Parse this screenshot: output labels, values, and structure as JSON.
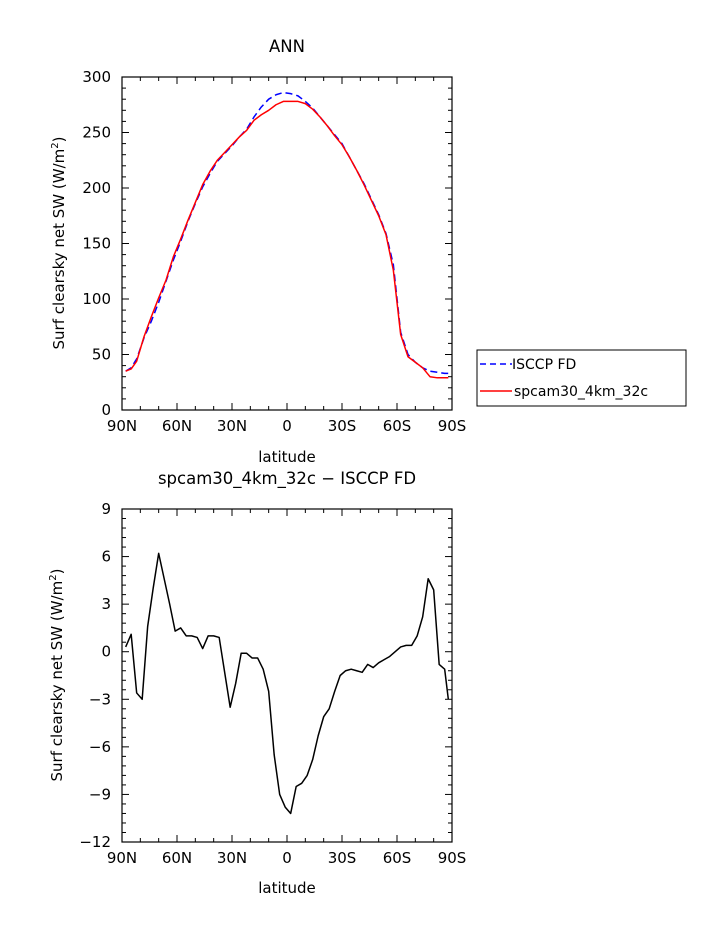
{
  "chart_data": [
    {
      "type": "line",
      "title": "ANN",
      "xlabel": "latitude",
      "ylabel_main": "Surf clearsky net SW (W/m",
      "ylabel_sup": "2",
      "ylabel_end": ")",
      "xlim": [
        90,
        -90
      ],
      "ylim": [
        0,
        300
      ],
      "xticks": [
        90,
        60,
        30,
        0,
        -30,
        -60,
        -90
      ],
      "xtick_labels": [
        "90N",
        "60N",
        "30N",
        "0",
        "30S",
        "60S",
        "90S"
      ],
      "yticks": [
        0,
        50,
        100,
        150,
        200,
        250,
        300
      ],
      "ytick_labels": [
        "0",
        "50",
        "100",
        "150",
        "200",
        "250",
        "300"
      ],
      "legend_position": "right",
      "series": [
        {
          "name": "ISCCP FD",
          "color": "#0000ff",
          "dash": true,
          "x": [
            88,
            85,
            82,
            78,
            74,
            70,
            66,
            62,
            58,
            54,
            50,
            46,
            42,
            38,
            34,
            30,
            26,
            22,
            18,
            14,
            10,
            6,
            2,
            -2,
            -6,
            -10,
            -14,
            -18,
            -22,
            -26,
            -30,
            -34,
            -38,
            -42,
            -46,
            -50,
            -54,
            -58,
            -62,
            -66,
            -70,
            -74,
            -78,
            -82,
            -86,
            -88
          ],
          "y": [
            35,
            38,
            46,
            65,
            80,
            97,
            116,
            135,
            152,
            170,
            186,
            201,
            213,
            224,
            231,
            238,
            246,
            253,
            264,
            273,
            280,
            284,
            286,
            285,
            283,
            278,
            272,
            264,
            256,
            248,
            240,
            228,
            216,
            204,
            190,
            176,
            159,
            131,
            70,
            50,
            43,
            38,
            35,
            34,
            33,
            33
          ]
        },
        {
          "name": "spcam30_4km_32c",
          "color": "#ff0000",
          "dash": false,
          "x": [
            88,
            85,
            82,
            78,
            74,
            70,
            66,
            62,
            58,
            54,
            50,
            46,
            42,
            38,
            34,
            30,
            26,
            22,
            18,
            14,
            10,
            6,
            2,
            -2,
            -6,
            -10,
            -14,
            -18,
            -22,
            -26,
            -30,
            -34,
            -38,
            -42,
            -46,
            -50,
            -54,
            -58,
            -62,
            -66,
            -70,
            -74,
            -78,
            -82,
            -86,
            -88
          ],
          "y": [
            35,
            37,
            44,
            66,
            84,
            101,
            117,
            138,
            154,
            171,
            187,
            203,
            215,
            225,
            232,
            239,
            246,
            252,
            261,
            266,
            270,
            275,
            278,
            278,
            278,
            276,
            271,
            264,
            256,
            247,
            239,
            228,
            216,
            203,
            189,
            175,
            158,
            126,
            68,
            48,
            43,
            38,
            30,
            29,
            29,
            29
          ]
        }
      ]
    },
    {
      "type": "line",
      "title": "spcam30_4km_32c − ISCCP FD",
      "xlabel": "latitude",
      "ylabel_main": "Surf clearsky net SW (W/m",
      "ylabel_sup": "2",
      "ylabel_end": ")",
      "xlim": [
        90,
        -90
      ],
      "ylim": [
        -12,
        9
      ],
      "xticks": [
        90,
        60,
        30,
        0,
        -30,
        -60,
        -90
      ],
      "xtick_labels": [
        "90N",
        "60N",
        "30N",
        "0",
        "30S",
        "60S",
        "90S"
      ],
      "yticks": [
        -12,
        -9,
        -6,
        -3,
        0,
        3,
        6,
        9
      ],
      "ytick_labels": [
        "−12",
        "−9",
        "−6",
        "−3",
        "0",
        "3",
        "6",
        "9"
      ],
      "series": [
        {
          "color": "#000000",
          "dash": false,
          "x": [
            88,
            85,
            82,
            79,
            76,
            73,
            70,
            67,
            64,
            61,
            58,
            55,
            52,
            49,
            46,
            43,
            40,
            37,
            34,
            31,
            28,
            25,
            22,
            19,
            16,
            13,
            10,
            7,
            4,
            1,
            -2,
            -5,
            -8,
            -11,
            -14,
            -17,
            -20,
            -23,
            -26,
            -29,
            -32,
            -35,
            -38,
            -41,
            -44,
            -47,
            -50,
            -53,
            -56,
            -59,
            -62,
            -65,
            -68,
            -71,
            -74,
            -77,
            -80,
            -83,
            -86,
            -88
          ],
          "y": [
            0.3,
            1.1,
            -2.6,
            -3.0,
            1.6,
            4.0,
            6.2,
            4.6,
            3.0,
            1.3,
            1.5,
            1.0,
            1.0,
            0.9,
            0.2,
            1.0,
            1.0,
            0.9,
            -1.3,
            -3.5,
            -2.0,
            -0.1,
            -0.1,
            -0.4,
            -0.4,
            -1.1,
            -2.5,
            -6.5,
            -9.0,
            -9.8,
            -10.2,
            -8.5,
            -8.3,
            -7.8,
            -6.8,
            -5.3,
            -4.1,
            -3.6,
            -2.5,
            -1.5,
            -1.2,
            -1.1,
            -1.2,
            -1.3,
            -0.8,
            -1.0,
            -0.7,
            -0.5,
            -0.3,
            0.0,
            0.3,
            0.4,
            0.4,
            1.0,
            2.2,
            4.6,
            3.9,
            -0.8,
            -1.1,
            -3.0
          ]
        }
      ]
    }
  ]
}
